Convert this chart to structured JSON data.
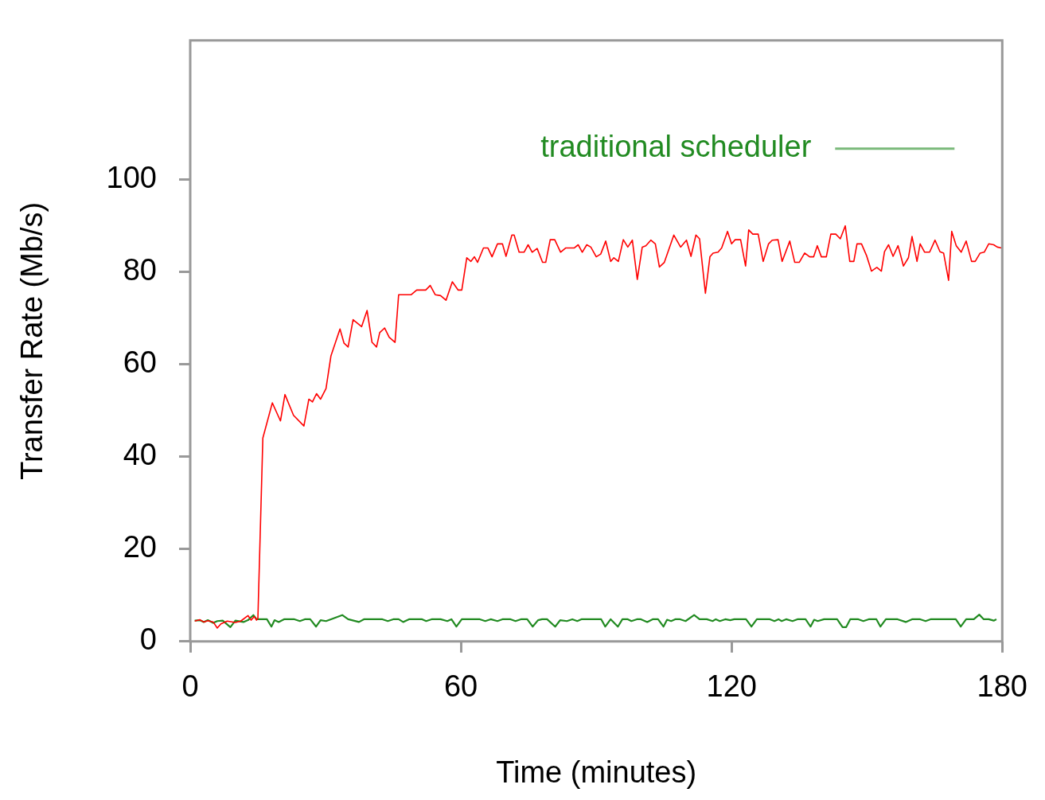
{
  "chart_data": {
    "type": "line",
    "xlabel": "Time (minutes)",
    "ylabel": "Transfer Rate (Mb/s)",
    "xlim": [
      0,
      180
    ],
    "xticks": [
      0,
      60,
      120,
      180
    ],
    "ylim": [
      0,
      130
    ],
    "yticks": [
      0,
      20,
      40,
      60,
      80,
      100
    ],
    "grid": false,
    "legend": "top right",
    "marker": "none",
    "line_style": "solid",
    "series": [
      {
        "color": "#ff0000",
        "x": [
          1,
          2.1,
          3,
          3.9,
          5.1,
          6,
          6.8,
          8.2,
          10,
          11.2,
          12.8,
          13.5,
          14.2,
          14.7,
          15,
          16.1,
          18.2,
          20,
          21,
          22.9,
          25.2,
          26.3,
          27.1,
          28,
          28.9,
          30.1,
          31.2,
          33.2,
          34.1,
          35,
          36.1,
          38,
          39.2,
          40.3,
          41.3,
          42,
          43.1,
          44.1,
          45.4,
          46.2,
          49,
          50.2,
          52.2,
          53.2,
          54.3,
          55.5,
          56.7,
          58.1,
          59.4,
          60.2,
          61.3,
          62.2,
          63,
          63.7,
          65,
          66,
          66.9,
          68.1,
          69.2,
          70,
          71.3,
          71.8,
          72.9,
          74,
          74.9,
          75.8,
          76.9,
          78.1,
          78.8,
          79.8,
          80.8,
          82.1,
          83.2,
          85.1,
          86,
          86.9,
          87.9,
          88.8,
          90,
          91,
          92.1,
          93.2,
          93.9,
          94.9,
          96,
          97,
          98,
          99.1,
          100.2,
          101,
          102.1,
          103.1,
          104,
          105.1,
          107.2,
          108.7,
          110,
          111,
          112.1,
          112.9,
          114.2,
          115.2,
          115.9,
          117,
          117.8,
          119.1,
          120,
          120.8,
          122,
          123.1,
          123.8,
          124.7,
          125.9,
          127,
          128.2,
          129,
          130.3,
          131.2,
          132.9,
          134,
          135,
          136.2,
          137.3,
          138.2,
          139,
          139.9,
          141,
          142,
          143.1,
          144.1,
          145.2,
          146.2,
          147.1,
          147.8,
          148.8,
          149.9,
          151,
          152.2,
          153.2,
          153.9,
          154.8,
          155.8,
          156.9,
          158.1,
          159.2,
          160,
          161.1,
          161.8,
          162.8,
          163.9,
          165.1,
          166.2,
          167,
          168.1,
          168.8,
          169.8,
          170.9,
          172,
          173.2,
          174,
          175.1,
          176,
          177,
          178.1,
          178.9,
          179.8
        ],
        "values": [
          4.4,
          4.7,
          4.2,
          4.5,
          4.2,
          2.9,
          3.8,
          4.4,
          4.1,
          4.4,
          5.6,
          4.6,
          5.4,
          4.6,
          5,
          44,
          51.6,
          47.7,
          53.4,
          48.9,
          46.6,
          52.4,
          51.8,
          53.6,
          52.4,
          54.7,
          61.8,
          67.6,
          64.5,
          63.7,
          69.6,
          68.1,
          71.6,
          64.7,
          63.7,
          66.8,
          67.8,
          65.8,
          64.7,
          75,
          75,
          76,
          76,
          77,
          75,
          74.8,
          73.8,
          77.8,
          76,
          76,
          83,
          82.2,
          83.2,
          82,
          85.1,
          85.1,
          83.2,
          86,
          86,
          83.3,
          87.9,
          87.9,
          84.2,
          84.2,
          85.8,
          84.2,
          85,
          82,
          82,
          86.9,
          86.9,
          84.2,
          85.1,
          85.1,
          85.8,
          84.2,
          85.8,
          85.3,
          83.2,
          83.8,
          86.6,
          82.2,
          83,
          82.2,
          86.9,
          85.3,
          86.8,
          78.3,
          85.3,
          85.6,
          86.8,
          86,
          81,
          82,
          87.9,
          85.3,
          86.8,
          83.3,
          87.9,
          87.1,
          75.3,
          83.2,
          84,
          84.2,
          85.1,
          88.7,
          86,
          86.9,
          86.9,
          81.2,
          89,
          88.1,
          88.1,
          82.2,
          86,
          86.8,
          86.9,
          82.2,
          86.6,
          82,
          82,
          84,
          83.2,
          83.2,
          85.6,
          83.2,
          83.2,
          88.1,
          88.1,
          87.1,
          89.9,
          82.2,
          82.2,
          86,
          86,
          83.5,
          80.1,
          80.9,
          80.1,
          84.3,
          85.8,
          83.3,
          85.6,
          81.2,
          83,
          87.6,
          82.2,
          86,
          84.2,
          84.2,
          86.8,
          84.3,
          84,
          78.1,
          88.7,
          85.6,
          84.2,
          86.6,
          82.2,
          82.2,
          84,
          84.2,
          86,
          85.8,
          85.3,
          85.1
        ]
      },
      {
        "name": "traditional scheduler",
        "color": "#228b22",
        "x": [
          1,
          2.1,
          3,
          3.9,
          5.1,
          6,
          7.2,
          8.9,
          10,
          11.8,
          12.8,
          14,
          14.7,
          17,
          18,
          18.7,
          19.6,
          20.8,
          23.1,
          24.3,
          25.4,
          26.6,
          27.9,
          28.9,
          30.1,
          31.2,
          33.7,
          35,
          36.2,
          37.4,
          38.5,
          42.6,
          43.8,
          45,
          46.2,
          47.2,
          48.5,
          51.4,
          52.3,
          53.5,
          55.5,
          57,
          57.9,
          59,
          60.2,
          64.2,
          65.4,
          66.6,
          68.1,
          69.2,
          71,
          72.1,
          73.3,
          74.7,
          75.9,
          77.1,
          78,
          79.1,
          80.9,
          82,
          83.5,
          84.7,
          85.8,
          86.7,
          88.8,
          91.1,
          92,
          93.2,
          94.8,
          95.8,
          97,
          97.8,
          99,
          99.9,
          101.3,
          102.5,
          103.7,
          104.9,
          105.7,
          106.6,
          107.5,
          108.6,
          109.8,
          111.7,
          112.9,
          114.5,
          115.8,
          116.5,
          117.4,
          118.6,
          119.7,
          120.6,
          123.2,
          124.4,
          125.6,
          128.5,
          129.5,
          130.4,
          131.1,
          132.1,
          133.5,
          134.6,
          136.4,
          137.5,
          138.3,
          139.1,
          140.5,
          143.4,
          144.6,
          145.4,
          146.3,
          148.1,
          149.2,
          150.4,
          152.1,
          153,
          154.2,
          156.8,
          158.6,
          160,
          161.8,
          163,
          164.1,
          169.7,
          170.8,
          172,
          173.7,
          174.9,
          175.9,
          177,
          178.1,
          178.7
        ],
        "values": [
          4.5,
          4.6,
          4.2,
          4.6,
          4,
          4.4,
          4.5,
          3.1,
          4.5,
          4.2,
          4.6,
          5.7,
          4.8,
          4.8,
          3.2,
          4.6,
          4.2,
          4.8,
          4.8,
          4.4,
          4.8,
          4.8,
          3.2,
          4.6,
          4.4,
          4.8,
          5.7,
          4.8,
          4.5,
          4.2,
          4.8,
          4.8,
          4.4,
          4.8,
          4.8,
          4.2,
          4.8,
          4.8,
          4.4,
          4.8,
          4.8,
          4.4,
          4.8,
          3.2,
          4.8,
          4.8,
          4.4,
          4.8,
          4.4,
          4.8,
          4.8,
          4.4,
          4.8,
          4.8,
          3.2,
          4.6,
          4.8,
          4.8,
          3.2,
          4.6,
          4.4,
          4.8,
          4.4,
          4.8,
          4.8,
          4.8,
          3.2,
          4.8,
          3.2,
          4.8,
          4.8,
          4.4,
          4.8,
          4.8,
          4.2,
          4.8,
          4.8,
          3.2,
          4.7,
          4.4,
          4.8,
          4.8,
          4.4,
          5.7,
          4.8,
          4.8,
          4.4,
          4.8,
          4.4,
          4.8,
          4.6,
          4.8,
          4.8,
          3.2,
          4.8,
          4.8,
          4.4,
          4.8,
          4.4,
          4.8,
          4.4,
          4.8,
          4.8,
          3.2,
          4.7,
          4.4,
          4.8,
          4.8,
          3.1,
          3.1,
          4.8,
          4.8,
          4.4,
          4.8,
          4.8,
          3.2,
          4.8,
          4.8,
          4.2,
          4.8,
          4.8,
          4.4,
          4.8,
          4.8,
          3.2,
          4.8,
          4.8,
          5.8,
          4.8,
          4.8,
          4.5,
          4.8
        ]
      }
    ]
  }
}
